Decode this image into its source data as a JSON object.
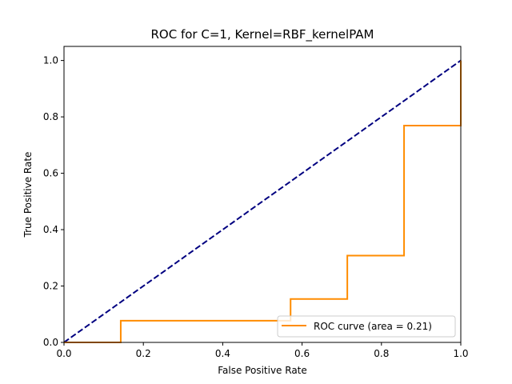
{
  "chart_data": {
    "type": "line",
    "title": "ROC for C=1, Kernel=RBF_kernelPAM",
    "xlabel": "False Positive Rate",
    "ylabel": "True Positive Rate",
    "xlim": [
      0.0,
      1.0
    ],
    "ylim": [
      0.0,
      1.05
    ],
    "x_ticks": [
      "0.0",
      "0.2",
      "0.4",
      "0.6",
      "0.8",
      "1.0"
    ],
    "y_ticks": [
      "0.0",
      "0.2",
      "0.4",
      "0.6",
      "0.8",
      "1.0"
    ],
    "grid": false,
    "legend_position": "lower right",
    "series": [
      {
        "name": "ROC curve (area = 0.21)",
        "style": "solid",
        "color": "#ff8c00",
        "x": [
          0.0,
          0.143,
          0.143,
          0.571,
          0.571,
          0.714,
          0.714,
          0.857,
          0.857,
          1.0,
          1.0
        ],
        "y": [
          0.0,
          0.0,
          0.077,
          0.077,
          0.154,
          0.154,
          0.308,
          0.308,
          0.769,
          0.769,
          1.0
        ]
      },
      {
        "style": "dashed",
        "color": "#000080",
        "x": [
          0.0,
          1.0
        ],
        "y": [
          0.0,
          1.0
        ]
      }
    ]
  }
}
